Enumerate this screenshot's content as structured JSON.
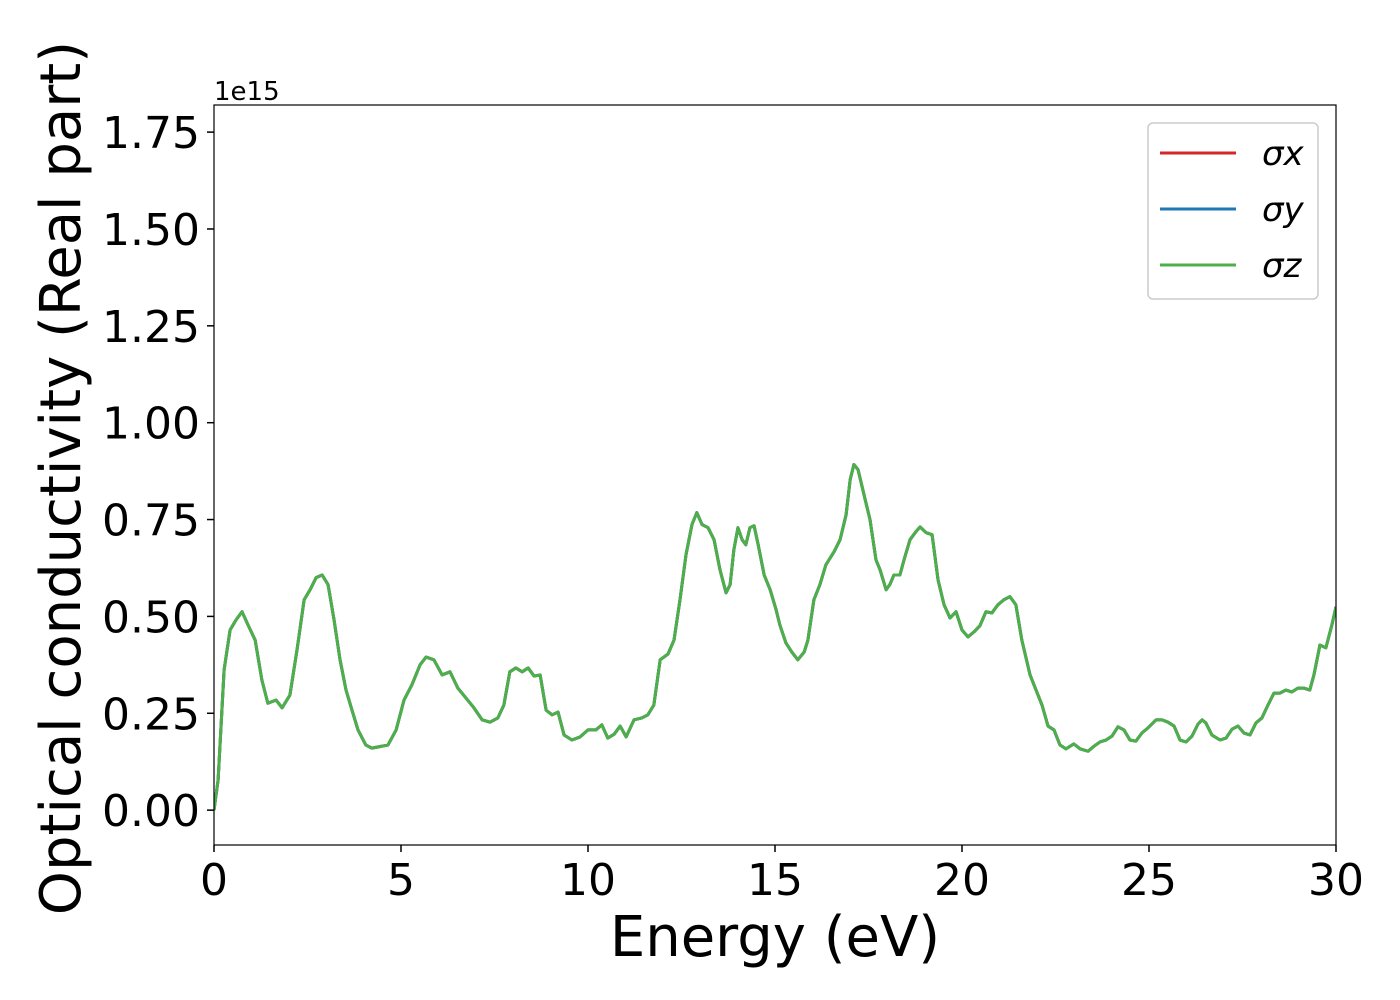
{
  "chart_data": {
    "type": "line",
    "xlabel": "Energy (eV)",
    "ylabel": "Optical conductivity (Real part)",
    "offset_label": "1e15",
    "x": [
      0,
      0.11,
      0.27,
      0.43,
      0.59,
      0.75,
      0.91,
      1.1,
      1.28,
      1.44,
      1.66,
      1.82,
      2.03,
      2.22,
      2.41,
      2.57,
      2.73,
      2.89,
      3.05,
      3.21,
      3.37,
      3.53,
      3.69,
      3.85,
      4.06,
      4.22,
      4.65,
      4.87,
      5.08,
      5.29,
      5.51,
      5.67,
      5.88,
      6.1,
      6.31,
      6.52,
      6.74,
      6.95,
      7.17,
      7.38,
      7.59,
      7.75,
      7.91,
      8.07,
      8.24,
      8.4,
      8.56,
      8.72,
      8.88,
      9.04,
      9.2,
      9.36,
      9.57,
      9.79,
      10.0,
      10.21,
      10.37,
      10.53,
      10.7,
      10.86,
      11.02,
      11.23,
      11.44,
      11.6,
      11.76,
      11.93,
      12.14,
      12.3,
      12.46,
      12.62,
      12.78,
      12.91,
      13.05,
      13.21,
      13.37,
      13.53,
      13.69,
      13.8,
      13.9,
      14.01,
      14.12,
      14.22,
      14.33,
      14.44,
      14.55,
      14.71,
      14.87,
      15.03,
      15.13,
      15.29,
      15.45,
      15.61,
      15.78,
      15.88,
      16.04,
      16.2,
      16.36,
      16.58,
      16.74,
      16.9,
      17.01,
      17.11,
      17.22,
      17.38,
      17.54,
      17.7,
      17.81,
      17.97,
      18.07,
      18.18,
      18.34,
      18.45,
      18.61,
      18.77,
      18.88,
      19.04,
      19.2,
      19.36,
      19.52,
      19.68,
      19.84,
      20.0,
      20.16,
      20.32,
      20.48,
      20.64,
      20.8,
      20.96,
      21.12,
      21.28,
      21.44,
      21.6,
      21.82,
      21.98,
      22.14,
      22.3,
      22.46,
      22.62,
      22.78,
      22.99,
      23.16,
      23.37,
      23.53,
      23.69,
      23.85,
      24.01,
      24.17,
      24.33,
      24.49,
      24.65,
      24.81,
      24.97,
      25.19,
      25.35,
      25.51,
      25.67,
      25.83,
      25.99,
      26.15,
      26.31,
      26.42,
      26.52,
      26.68,
      26.9,
      27.06,
      27.22,
      27.38,
      27.54,
      27.7,
      27.86,
      28.02,
      28.18,
      28.34,
      28.5,
      28.66,
      28.82,
      28.98,
      29.14,
      29.3,
      29.41,
      29.57,
      29.73,
      29.89,
      30.0
    ],
    "series": [
      {
        "name": "σx",
        "color": "#d62728",
        "values": [
          0,
          0.078,
          0.362,
          0.465,
          0.491,
          0.512,
          0.478,
          0.439,
          0.336,
          0.276,
          0.284,
          0.264,
          0.297,
          0.414,
          0.543,
          0.569,
          0.6,
          0.607,
          0.582,
          0.491,
          0.388,
          0.31,
          0.258,
          0.207,
          0.168,
          0.16,
          0.168,
          0.207,
          0.284,
          0.323,
          0.375,
          0.395,
          0.388,
          0.349,
          0.357,
          0.315,
          0.289,
          0.264,
          0.233,
          0.227,
          0.238,
          0.271,
          0.357,
          0.367,
          0.357,
          0.367,
          0.346,
          0.349,
          0.258,
          0.246,
          0.253,
          0.194,
          0.181,
          0.189,
          0.207,
          0.207,
          0.22,
          0.186,
          0.196,
          0.217,
          0.189,
          0.233,
          0.238,
          0.246,
          0.271,
          0.388,
          0.403,
          0.439,
          0.543,
          0.659,
          0.737,
          0.768,
          0.737,
          0.729,
          0.698,
          0.62,
          0.561,
          0.582,
          0.672,
          0.729,
          0.698,
          0.685,
          0.729,
          0.734,
          0.685,
          0.607,
          0.569,
          0.517,
          0.478,
          0.432,
          0.408,
          0.388,
          0.408,
          0.439,
          0.543,
          0.582,
          0.633,
          0.667,
          0.698,
          0.762,
          0.853,
          0.892,
          0.879,
          0.814,
          0.75,
          0.646,
          0.62,
          0.569,
          0.582,
          0.607,
          0.607,
          0.646,
          0.698,
          0.719,
          0.731,
          0.716,
          0.711,
          0.594,
          0.53,
          0.496,
          0.512,
          0.465,
          0.447,
          0.46,
          0.476,
          0.512,
          0.509,
          0.53,
          0.543,
          0.551,
          0.53,
          0.439,
          0.349,
          0.31,
          0.271,
          0.217,
          0.207,
          0.168,
          0.158,
          0.171,
          0.158,
          0.152,
          0.165,
          0.176,
          0.181,
          0.191,
          0.215,
          0.207,
          0.181,
          0.178,
          0.199,
          0.212,
          0.233,
          0.233,
          0.227,
          0.217,
          0.181,
          0.176,
          0.191,
          0.222,
          0.233,
          0.225,
          0.194,
          0.181,
          0.186,
          0.209,
          0.217,
          0.199,
          0.194,
          0.225,
          0.238,
          0.271,
          0.302,
          0.302,
          0.31,
          0.305,
          0.315,
          0.315,
          0.31,
          0.349,
          0.426,
          0.419,
          0.478,
          0.525
        ]
      },
      {
        "name": "σy",
        "color": "#1f77b4",
        "values": [
          0,
          0.078,
          0.362,
          0.465,
          0.491,
          0.512,
          0.478,
          0.439,
          0.336,
          0.276,
          0.284,
          0.264,
          0.297,
          0.414,
          0.543,
          0.569,
          0.6,
          0.607,
          0.582,
          0.491,
          0.388,
          0.31,
          0.258,
          0.207,
          0.168,
          0.16,
          0.168,
          0.207,
          0.284,
          0.323,
          0.375,
          0.395,
          0.388,
          0.349,
          0.357,
          0.315,
          0.289,
          0.264,
          0.233,
          0.227,
          0.238,
          0.271,
          0.357,
          0.367,
          0.357,
          0.367,
          0.346,
          0.349,
          0.258,
          0.246,
          0.253,
          0.194,
          0.181,
          0.189,
          0.207,
          0.207,
          0.22,
          0.186,
          0.196,
          0.217,
          0.189,
          0.233,
          0.238,
          0.246,
          0.271,
          0.388,
          0.403,
          0.439,
          0.543,
          0.659,
          0.737,
          0.768,
          0.737,
          0.729,
          0.698,
          0.62,
          0.561,
          0.582,
          0.672,
          0.729,
          0.698,
          0.685,
          0.729,
          0.734,
          0.685,
          0.607,
          0.569,
          0.517,
          0.478,
          0.432,
          0.408,
          0.388,
          0.408,
          0.439,
          0.543,
          0.582,
          0.633,
          0.667,
          0.698,
          0.762,
          0.853,
          0.892,
          0.879,
          0.814,
          0.75,
          0.646,
          0.62,
          0.569,
          0.582,
          0.607,
          0.607,
          0.646,
          0.698,
          0.719,
          0.731,
          0.716,
          0.711,
          0.594,
          0.53,
          0.496,
          0.512,
          0.465,
          0.447,
          0.46,
          0.476,
          0.512,
          0.509,
          0.53,
          0.543,
          0.551,
          0.53,
          0.439,
          0.349,
          0.31,
          0.271,
          0.217,
          0.207,
          0.168,
          0.158,
          0.171,
          0.158,
          0.152,
          0.165,
          0.176,
          0.181,
          0.191,
          0.215,
          0.207,
          0.181,
          0.178,
          0.199,
          0.212,
          0.233,
          0.233,
          0.227,
          0.217,
          0.181,
          0.176,
          0.191,
          0.222,
          0.233,
          0.225,
          0.194,
          0.181,
          0.186,
          0.209,
          0.217,
          0.199,
          0.194,
          0.225,
          0.238,
          0.271,
          0.302,
          0.302,
          0.31,
          0.305,
          0.315,
          0.315,
          0.31,
          0.349,
          0.426,
          0.419,
          0.478,
          0.525
        ]
      },
      {
        "name": "σz",
        "color": "#4daf4a",
        "values": [
          0,
          0.078,
          0.362,
          0.465,
          0.491,
          0.512,
          0.478,
          0.439,
          0.336,
          0.276,
          0.284,
          0.264,
          0.297,
          0.414,
          0.543,
          0.569,
          0.6,
          0.607,
          0.582,
          0.491,
          0.388,
          0.31,
          0.258,
          0.207,
          0.168,
          0.16,
          0.168,
          0.207,
          0.284,
          0.323,
          0.375,
          0.395,
          0.388,
          0.349,
          0.357,
          0.315,
          0.289,
          0.264,
          0.233,
          0.227,
          0.238,
          0.271,
          0.357,
          0.367,
          0.357,
          0.367,
          0.346,
          0.349,
          0.258,
          0.246,
          0.253,
          0.194,
          0.181,
          0.189,
          0.207,
          0.207,
          0.22,
          0.186,
          0.196,
          0.217,
          0.189,
          0.233,
          0.238,
          0.246,
          0.271,
          0.388,
          0.403,
          0.439,
          0.543,
          0.659,
          0.737,
          0.768,
          0.737,
          0.729,
          0.698,
          0.62,
          0.561,
          0.582,
          0.672,
          0.729,
          0.698,
          0.685,
          0.729,
          0.734,
          0.685,
          0.607,
          0.569,
          0.517,
          0.478,
          0.432,
          0.408,
          0.388,
          0.408,
          0.439,
          0.543,
          0.582,
          0.633,
          0.667,
          0.698,
          0.762,
          0.853,
          0.892,
          0.879,
          0.814,
          0.75,
          0.646,
          0.62,
          0.569,
          0.582,
          0.607,
          0.607,
          0.646,
          0.698,
          0.719,
          0.731,
          0.716,
          0.711,
          0.594,
          0.53,
          0.496,
          0.512,
          0.465,
          0.447,
          0.46,
          0.476,
          0.512,
          0.509,
          0.53,
          0.543,
          0.551,
          0.53,
          0.439,
          0.349,
          0.31,
          0.271,
          0.217,
          0.207,
          0.168,
          0.158,
          0.171,
          0.158,
          0.152,
          0.165,
          0.176,
          0.181,
          0.191,
          0.215,
          0.207,
          0.181,
          0.178,
          0.199,
          0.212,
          0.233,
          0.233,
          0.227,
          0.217,
          0.181,
          0.176,
          0.191,
          0.222,
          0.233,
          0.225,
          0.194,
          0.181,
          0.186,
          0.209,
          0.217,
          0.199,
          0.194,
          0.225,
          0.238,
          0.271,
          0.302,
          0.302,
          0.31,
          0.305,
          0.315,
          0.315,
          0.31,
          0.349,
          0.426,
          0.419,
          0.478,
          0.525
        ]
      }
    ],
    "xlim": [
      0,
      30
    ],
    "xticks": [
      0,
      5,
      10,
      15,
      20,
      25,
      30
    ],
    "ylim": [
      -0.09,
      1.82
    ],
    "yticks": [
      {
        "value": 0,
        "label": "0.00"
      },
      0.25,
      {
        "value": 0.5,
        "label": "0.50"
      },
      0.75,
      {
        "value": 1,
        "label": "1.00"
      },
      1.25,
      {
        "value": 1.5,
        "label": "1.50"
      },
      1.75
    ],
    "legend": "upper right",
    "grid": false
  }
}
